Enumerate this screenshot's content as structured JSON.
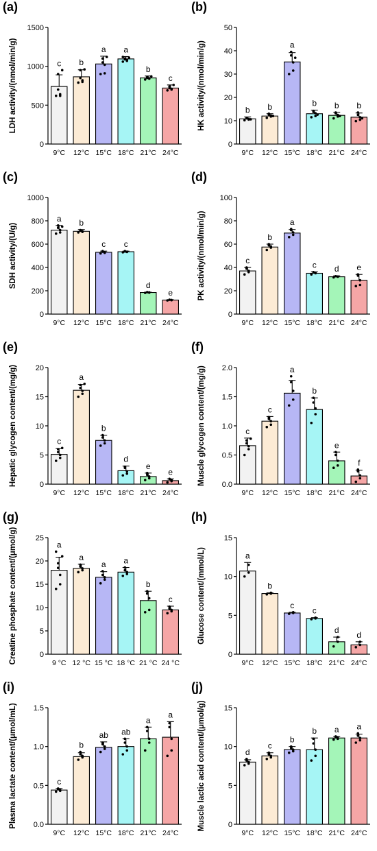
{
  "chart_data": [
    {
      "panel": "(a)",
      "type": "bar",
      "ylabel": "LDH activity/(nmol/min/g)",
      "ylim": [
        0,
        1500
      ],
      "yticks": [
        0,
        500,
        1000,
        1500
      ],
      "categories": [
        "9°C",
        "12°C",
        "15°C",
        "18°C",
        "21°C",
        "24°C"
      ],
      "values": [
        740,
        865,
        1030,
        1095,
        850,
        720
      ],
      "errors": [
        150,
        90,
        100,
        30,
        25,
        40
      ],
      "letters": [
        "c",
        "b",
        "a",
        "a",
        "b",
        "c"
      ],
      "points": [
        [
          620,
          620,
          640,
          700,
          900,
          950
        ],
        [
          790,
          800,
          820,
          850,
          950,
          960
        ],
        [
          900,
          910,
          1020,
          1050,
          1100,
          1120
        ],
        [
          1060,
          1070,
          1080,
          1090,
          1100,
          1110,
          1120
        ],
        [
          830,
          840,
          845,
          850,
          860,
          870
        ],
        [
          690,
          700,
          710,
          720,
          740,
          760
        ]
      ]
    },
    {
      "panel": "(b)",
      "type": "bar",
      "ylabel": "HK activity/(nmol/min/g)",
      "ylim": [
        0,
        50
      ],
      "yticks": [
        0,
        10,
        20,
        30,
        40,
        50
      ],
      "categories": [
        "9°C",
        "12°C",
        "15°C",
        "18°C",
        "21°C",
        "24°C"
      ],
      "values": [
        10.8,
        12.0,
        35.2,
        13.0,
        12.3,
        11.5
      ],
      "errors": [
        0.8,
        1.0,
        4.0,
        1.5,
        1.3,
        1.8
      ],
      "letters": [
        "b",
        "b",
        "a",
        "b",
        "b",
        "b"
      ],
      "points": [
        [
          10.2,
          10.5,
          10.8,
          11.0,
          11.2,
          10.6
        ],
        [
          11.2,
          11.8,
          12.2,
          12.6,
          13.0,
          12.0
        ],
        [
          30.0,
          31.5,
          35.0,
          38.0,
          39.5,
          37.0
        ],
        [
          11.5,
          12.0,
          13.2,
          13.8,
          14.2,
          12.6
        ],
        [
          11.0,
          11.8,
          12.5,
          13.2,
          13.5,
          12.0
        ],
        [
          9.8,
          10.4,
          11.5,
          12.5,
          13.5,
          11.0
        ]
      ]
    },
    {
      "panel": "(c)",
      "type": "bar",
      "ylabel": "SDH activity/(U/g)",
      "ylim": [
        0,
        1000
      ],
      "yticks": [
        0,
        200,
        400,
        600,
        800,
        1000
      ],
      "categories": [
        "9°C",
        "12°C",
        "15°C",
        "18°C",
        "21°C",
        "24°C"
      ],
      "values": [
        720,
        710,
        530,
        535,
        185,
        120
      ],
      "errors": [
        40,
        15,
        10,
        5,
        3,
        3
      ],
      "letters": [
        "a",
        "b",
        "c",
        "c",
        "d",
        "e"
      ],
      "points": [
        [
          690,
          700,
          720,
          740,
          760,
          750
        ],
        [
          700,
          705,
          710,
          715,
          720
        ],
        [
          520,
          525,
          530,
          535,
          540
        ],
        [
          530,
          533,
          535,
          537,
          540
        ],
        [
          182,
          184,
          186,
          188
        ],
        [
          117,
          119,
          121,
          123
        ]
      ]
    },
    {
      "panel": "(d)",
      "type": "bar",
      "ylabel": "PK activity/(nmol/min/g)",
      "ylim": [
        0,
        100
      ],
      "yticks": [
        0,
        20,
        40,
        60,
        80,
        100
      ],
      "categories": [
        "9°C",
        "12°C",
        "15°C",
        "18°C",
        "21°C",
        "24°C"
      ],
      "values": [
        37,
        57.5,
        69.5,
        35,
        32,
        29
      ],
      "errors": [
        3,
        2.5,
        3,
        1.2,
        0.8,
        5
      ],
      "letters": [
        "c",
        "b",
        "a",
        "c",
        "d",
        "e"
      ],
      "points": [
        [
          34,
          36,
          37,
          39,
          40
        ],
        [
          55,
          57,
          58,
          59,
          60
        ],
        [
          66,
          68,
          70,
          72,
          73
        ],
        [
          34,
          35,
          35.5,
          36
        ],
        [
          31.5,
          32,
          32.2,
          32.5
        ],
        [
          24,
          25,
          29,
          33,
          34
        ]
      ]
    },
    {
      "panel": "(e)",
      "type": "bar",
      "ylabel": "Hepatic glycogen content/(mg/g)",
      "ylim": [
        0,
        20
      ],
      "yticks": [
        0,
        5,
        10,
        15,
        20
      ],
      "categories": [
        "9°C",
        "12°C",
        "15°C",
        "18°C",
        "21°C",
        "24°C"
      ],
      "values": [
        5.1,
        16.1,
        7.5,
        2.3,
        1.3,
        0.6
      ],
      "errors": [
        1.0,
        1.0,
        0.9,
        0.8,
        0.6,
        0.3
      ],
      "letters": [
        "c",
        "a",
        "b",
        "d",
        "e",
        "e"
      ],
      "points": [
        [
          4.0,
          4.5,
          5.0,
          5.5,
          6.0,
          6.2
        ],
        [
          15.0,
          15.5,
          16.0,
          16.5,
          17.0,
          17.2
        ],
        [
          6.6,
          7.0,
          7.5,
          8.0,
          8.4
        ],
        [
          1.5,
          1.8,
          2.2,
          2.8,
          3.0
        ],
        [
          0.7,
          1.0,
          1.3,
          1.6,
          1.9
        ],
        [
          0.3,
          0.5,
          0.7,
          0.9
        ]
      ]
    },
    {
      "panel": "(f)",
      "type": "bar",
      "ylabel": "Muscle glycogen content/(mg/g)",
      "ylim": [
        0,
        2.0
      ],
      "yticks": [
        0.0,
        0.5,
        1.0,
        1.5,
        2.0
      ],
      "categories": [
        "9°C",
        "12°C",
        "15°C",
        "18°C",
        "21°C",
        "24°C"
      ],
      "values": [
        0.66,
        1.08,
        1.56,
        1.28,
        0.4,
        0.14
      ],
      "errors": [
        0.13,
        0.08,
        0.22,
        0.2,
        0.15,
        0.1
      ],
      "letters": [
        "c",
        "c",
        "a",
        "b",
        "e",
        "f"
      ],
      "points": [
        [
          0.5,
          0.6,
          0.65,
          0.7,
          0.75,
          0.78
        ],
        [
          0.98,
          1.02,
          1.08,
          1.12,
          1.15
        ],
        [
          1.35,
          1.45,
          1.6,
          1.75,
          1.85
        ],
        [
          1.05,
          1.2,
          1.3,
          1.4,
          1.48
        ],
        [
          0.28,
          0.32,
          0.4,
          0.5,
          0.55
        ],
        [
          0.04,
          0.1,
          0.15,
          0.22,
          0.25
        ]
      ]
    },
    {
      "panel": "(g)",
      "type": "bar",
      "ylabel": "Creatine phosphate content/(μmol/g)",
      "ylim": [
        0,
        25
      ],
      "yticks": [
        0,
        5,
        10,
        15,
        20,
        25
      ],
      "categories": [
        "9 °C",
        "12 °C",
        "15 °C",
        "18 °C",
        "21 °C",
        "24 °C"
      ],
      "values": [
        18.0,
        18.4,
        16.5,
        17.6,
        11.5,
        9.5
      ],
      "errors": [
        2.8,
        0.9,
        1.2,
        1.0,
        2.0,
        0.8
      ],
      "letters": [
        "a",
        "a",
        "a",
        "a",
        "b",
        "c"
      ],
      "points": [
        [
          14.0,
          15.0,
          17.0,
          18.5,
          19.5,
          21.0,
          22.0
        ],
        [
          17.6,
          18.0,
          18.4,
          18.8,
          19.2
        ],
        [
          15.2,
          16.0,
          16.5,
          17.0,
          17.8
        ],
        [
          16.8,
          17.2,
          17.6,
          18.0,
          18.6
        ],
        [
          9.0,
          9.5,
          12.0,
          13.0,
          13.5
        ],
        [
          8.8,
          9.2,
          9.5,
          9.8,
          10.2
        ]
      ]
    },
    {
      "panel": "(h)",
      "type": "bar",
      "ylabel": "Glucose content/(mmol/L)",
      "ylim": [
        0,
        15
      ],
      "yticks": [
        0,
        5,
        10,
        15
      ],
      "categories": [
        "9°C",
        "12°C",
        "15°C",
        "18°C",
        "21°C",
        "24°C"
      ],
      "values": [
        10.7,
        7.8,
        5.3,
        4.6,
        1.6,
        1.2
      ],
      "errors": [
        1.1,
        0.1,
        0.1,
        0.1,
        0.6,
        0.4
      ],
      "letters": [
        "a",
        "b",
        "c",
        "c",
        "d",
        "d"
      ],
      "points": [
        [
          10.0,
          10.5,
          11.5
        ],
        [
          7.7,
          7.8,
          7.9
        ],
        [
          5.2,
          5.3,
          5.4
        ],
        [
          4.5,
          4.6,
          4.7
        ],
        [
          1.0,
          1.6,
          2.2
        ],
        [
          0.9,
          1.2,
          1.6
        ]
      ]
    },
    {
      "panel": "(i)",
      "type": "bar",
      "ylabel": "Plasma lactate content/(μmol/mL)",
      "ylim": [
        0,
        1.5
      ],
      "yticks": [
        0.0,
        0.5,
        1.0,
        1.5
      ],
      "categories": [
        "9°C",
        "12°C",
        "15°C",
        "18°C",
        "21°C",
        "24°C"
      ],
      "values": [
        0.44,
        0.87,
        0.99,
        1.0,
        1.1,
        1.12
      ],
      "errors": [
        0.02,
        0.05,
        0.07,
        0.1,
        0.15,
        0.2
      ],
      "letters": [
        "c",
        "b",
        "ab",
        "ab",
        "a",
        "a"
      ],
      "points": [
        [
          0.42,
          0.43,
          0.44,
          0.45,
          0.46
        ],
        [
          0.83,
          0.86,
          0.88,
          0.9,
          0.93
        ],
        [
          0.93,
          0.97,
          1.0,
          1.03,
          1.05
        ],
        [
          0.9,
          0.95,
          1.0,
          1.05,
          1.1
        ],
        [
          0.95,
          1.05,
          1.1,
          1.2,
          1.25
        ],
        [
          0.88,
          0.95,
          1.1,
          1.25,
          1.3
        ]
      ]
    },
    {
      "panel": "(j)",
      "type": "bar",
      "ylabel": "Muscle lactic acid content/(μmol/g)",
      "ylim": [
        0,
        15
      ],
      "yticks": [
        0,
        5,
        10,
        15
      ],
      "categories": [
        "9°C",
        "12°C",
        "15°C",
        "18°C",
        "21°C",
        "24°C"
      ],
      "values": [
        8.0,
        8.8,
        9.6,
        9.6,
        11.1,
        11.1
      ],
      "errors": [
        0.3,
        0.4,
        0.4,
        1.5,
        0.2,
        0.5
      ],
      "letters": [
        "d",
        "c",
        "b",
        "b",
        "a",
        "a"
      ],
      "points": [
        [
          7.6,
          7.8,
          8.0,
          8.2,
          8.4
        ],
        [
          8.4,
          8.6,
          8.8,
          9.0,
          9.2
        ],
        [
          9.2,
          9.4,
          9.6,
          9.8,
          10.0
        ],
        [
          8.2,
          8.8,
          9.6,
          10.4,
          11.0
        ],
        [
          10.9,
          11.0,
          11.1,
          11.2,
          11.3
        ],
        [
          10.5,
          10.8,
          11.1,
          11.4,
          11.7
        ]
      ]
    }
  ],
  "bar_colors": [
    "#f2f2f2",
    "#fcebd5",
    "#b7b7f5",
    "#a6f5f5",
    "#a4f5b8",
    "#f5a6a6"
  ]
}
